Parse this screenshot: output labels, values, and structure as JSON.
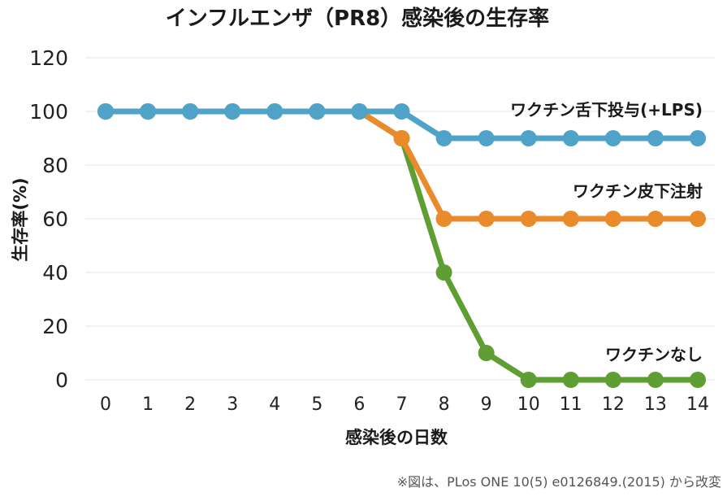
{
  "chart_data": {
    "type": "line",
    "title": "インフルエンザ（PR8）感染後の生存率",
    "xlabel": "感染後の日数",
    "ylabel": "生存率(%)",
    "x": [
      0,
      1,
      2,
      3,
      4,
      5,
      6,
      7,
      8,
      9,
      10,
      11,
      12,
      13,
      14
    ],
    "xlim": [
      0,
      14
    ],
    "ylim": [
      0,
      120
    ],
    "yticks": [
      0,
      20,
      40,
      60,
      80,
      100,
      120
    ],
    "grid": true,
    "series": [
      {
        "name": "ワクチンなし",
        "color": "#5e9e32",
        "values": [
          100,
          100,
          100,
          100,
          100,
          100,
          100,
          90,
          40,
          10,
          0,
          0,
          0,
          0,
          0
        ]
      },
      {
        "name": "ワクチン皮下注射",
        "color": "#e98b2a",
        "values": [
          100,
          100,
          100,
          100,
          100,
          100,
          100,
          90,
          60,
          60,
          60,
          60,
          60,
          60,
          60
        ]
      },
      {
        "name": "ワクチン舌下投与(+LPS)",
        "color": "#4fa3c9",
        "values": [
          100,
          100,
          100,
          100,
          100,
          100,
          100,
          100,
          90,
          90,
          90,
          90,
          90,
          90,
          90
        ]
      }
    ],
    "source_note": "※図は、PLos ONE 10(5) e0126849.(2015) から改変"
  }
}
